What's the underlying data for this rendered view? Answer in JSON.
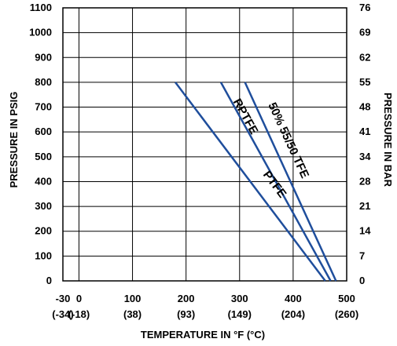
{
  "chart_data": {
    "type": "line",
    "xlabel": "TEMPERATURE IN °F (°C)",
    "ylabel": "PRESSURE IN PSIG",
    "y2label": "PRESSURE IN BAR",
    "xlim": [
      -30,
      500
    ],
    "ylim": [
      0,
      1100
    ],
    "grid": true,
    "x_ticks": [
      {
        "value": -30,
        "f": "-30",
        "c": "(-34)"
      },
      {
        "value": 0,
        "f": "0",
        "c": "(-18)"
      },
      {
        "value": 100,
        "f": "100",
        "c": "(38)"
      },
      {
        "value": 200,
        "f": "200",
        "c": "(93)"
      },
      {
        "value": 300,
        "f": "300",
        "c": "(149)"
      },
      {
        "value": 400,
        "f": "400",
        "c": "(204)"
      },
      {
        "value": 500,
        "f": "500",
        "c": "(260)"
      }
    ],
    "y_ticks": [
      {
        "value": 0,
        "psig": "0",
        "bar": "0"
      },
      {
        "value": 100,
        "psig": "100",
        "bar": "7"
      },
      {
        "value": 200,
        "psig": "200",
        "bar": "14"
      },
      {
        "value": 300,
        "psig": "300",
        "bar": "21"
      },
      {
        "value": 400,
        "psig": "400",
        "bar": "28"
      },
      {
        "value": 500,
        "psig": "500",
        "bar": "34"
      },
      {
        "value": 600,
        "psig": "600",
        "bar": "41"
      },
      {
        "value": 700,
        "psig": "700",
        "bar": "48"
      },
      {
        "value": 800,
        "psig": "800",
        "bar": "55"
      },
      {
        "value": 900,
        "psig": "900",
        "bar": "62"
      },
      {
        "value": 1000,
        "psig": "1000",
        "bar": "69"
      },
      {
        "value": 1100,
        "psig": "1100",
        "bar": "76"
      }
    ],
    "series": [
      {
        "name": "PTFE",
        "x": [
          180,
          460
        ],
        "y": [
          800,
          0
        ],
        "label_at": {
          "x": 360,
          "y": 380
        }
      },
      {
        "name": "RPTFE",
        "x": [
          265,
          470
        ],
        "y": [
          800,
          0
        ],
        "label_at": {
          "x": 305,
          "y": 655
        }
      },
      {
        "name": "50% 55/50 TFE",
        "x": [
          310,
          480
        ],
        "y": [
          800,
          0
        ],
        "label_at": {
          "x": 385,
          "y": 560
        }
      }
    ]
  }
}
